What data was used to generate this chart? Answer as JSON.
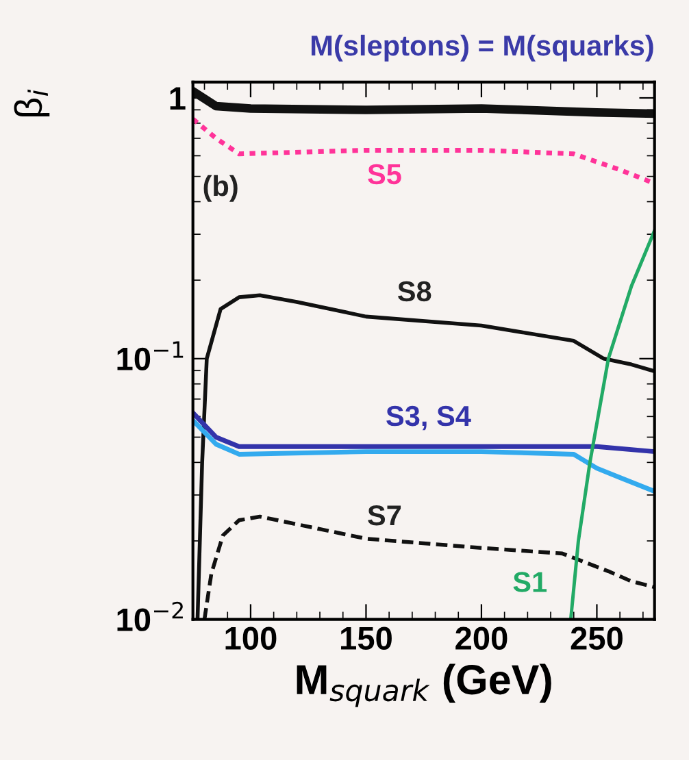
{
  "chart_data": {
    "type": "line",
    "title": "M(sleptons) = M(squarks)",
    "xlabel": "M$_{squark}$ (GeV)",
    "ylabel": "β$_{i}$",
    "xlim": [
      75,
      275
    ],
    "xticks": [
      100,
      150,
      200,
      250
    ],
    "ylim": [
      0.01,
      1.15
    ],
    "log": "y",
    "yticks": [
      {
        "value": 0.01,
        "label": "10$^{−2}$"
      },
      {
        "value": 0.1,
        "label": "10$^{−1}$"
      },
      1
    ],
    "grid": false,
    "legend": false,
    "marker": "none",
    "series": [
      {
        "color": "#111111",
        "line_style": "solid",
        "x": [
          75,
          85,
          100,
          150,
          200,
          250,
          275
        ],
        "values": [
          1.06,
          0.93,
          0.91,
          0.9,
          0.91,
          0.88,
          0.87
        ]
      },
      {
        "color": "#ff3399",
        "line_style": "dotted",
        "x": [
          75,
          85,
          95,
          150,
          200,
          240,
          260,
          275
        ],
        "values": [
          0.83,
          0.7,
          0.61,
          0.63,
          0.63,
          0.61,
          0.53,
          0.47
        ]
      },
      {
        "color": "#111111",
        "line_style": "solid",
        "x": [
          77,
          79,
          81,
          87,
          95,
          104,
          120,
          150,
          200,
          240,
          253,
          265,
          274
        ],
        "values": [
          0.01,
          0.04,
          0.1,
          0.155,
          0.172,
          0.175,
          0.165,
          0.145,
          0.134,
          0.117,
          0.1,
          0.095,
          0.09
        ]
      },
      {
        "color": "#3333aa",
        "line_style": "solid",
        "x": [
          75,
          85,
          95,
          150,
          200,
          250,
          275
        ],
        "values": [
          0.062,
          0.05,
          0.046,
          0.046,
          0.046,
          0.046,
          0.044
        ]
      },
      {
        "color": "#33aaee",
        "line_style": "solid",
        "x": [
          75,
          85,
          95,
          150,
          200,
          240,
          250,
          260,
          275
        ],
        "values": [
          0.058,
          0.047,
          0.043,
          0.044,
          0.044,
          0.043,
          0.038,
          0.035,
          0.031
        ]
      },
      {
        "color": "#111111",
        "line_style": "dashed",
        "x": [
          80,
          83,
          88,
          95,
          104,
          150,
          200,
          235,
          255,
          265,
          275
        ],
        "values": [
          0.01,
          0.015,
          0.021,
          0.024,
          0.0248,
          0.0204,
          0.0188,
          0.0179,
          0.0153,
          0.014,
          0.0133
        ]
      },
      {
        "color": "#22aa66",
        "line_style": "solid",
        "x": [
          238.7,
          242,
          247,
          255,
          265,
          275
        ],
        "values": [
          0.01,
          0.02,
          0.04,
          0.1,
          0.19,
          0.31
        ]
      }
    ],
    "annotations": [
      "S5",
      "S8",
      "S3, S4",
      "S7",
      "S1",
      "(b)"
    ]
  }
}
